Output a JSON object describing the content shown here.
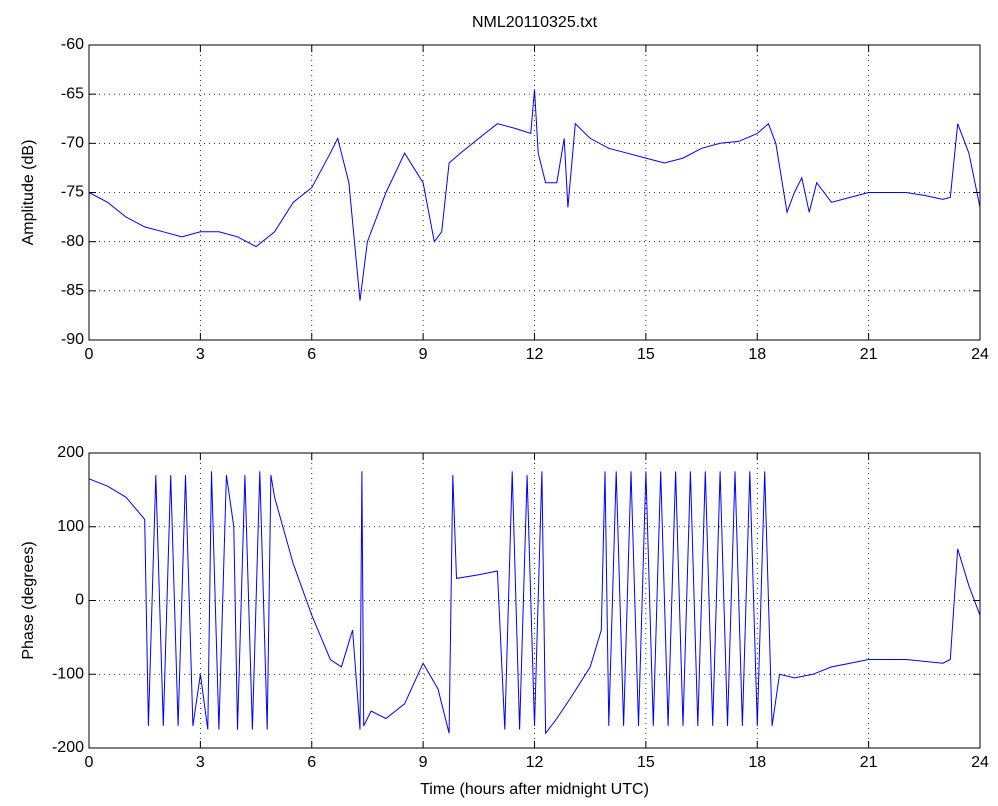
{
  "chart_data": [
    {
      "type": "line",
      "title": "NML20110325.txt",
      "ylabel": "Amplitude (dB)",
      "color": "#0000ff",
      "grid": true,
      "xlim": [
        0,
        24
      ],
      "xticks": [
        0,
        3,
        6,
        9,
        12,
        15,
        18,
        21,
        24
      ],
      "ylim": [
        -90,
        -60
      ],
      "yticks": [
        -90,
        -85,
        -80,
        -75,
        -70,
        -65,
        -60
      ],
      "x": [
        0,
        0.5,
        1,
        1.5,
        2,
        2.5,
        3,
        3.5,
        4,
        4.5,
        5,
        5.5,
        6,
        6.5,
        6.7,
        7,
        7.3,
        7.5,
        8,
        8.5,
        9,
        9.3,
        9.5,
        9.7,
        10,
        10.5,
        11,
        11.5,
        11.9,
        12,
        12.1,
        12.3,
        12.6,
        12.8,
        12.9,
        13.1,
        13.5,
        14,
        14.5,
        15,
        15.5,
        16,
        16.5,
        17,
        17.5,
        18,
        18.3,
        18.5,
        18.8,
        19,
        19.2,
        19.4,
        19.6,
        20,
        20.5,
        21,
        21.5,
        22,
        22.5,
        23,
        23.2,
        23.4,
        23.7,
        24
      ],
      "values": [
        -75,
        -76,
        -77.5,
        -78.5,
        -79,
        -79.5,
        -79,
        -79,
        -79.5,
        -80.5,
        -79,
        -76,
        -74.5,
        -71,
        -69.5,
        -74,
        -86,
        -80,
        -75,
        -71,
        -74,
        -80,
        -79,
        -72,
        -71,
        -69.5,
        -68,
        -68.5,
        -69,
        -64.5,
        -71,
        -74,
        -74,
        -69.5,
        -76.5,
        -68,
        -69.5,
        -70.5,
        -71,
        -71.5,
        -72,
        -71.5,
        -70.5,
        -70,
        -69.8,
        -69,
        -68,
        -70,
        -77,
        -75,
        -73.5,
        -77,
        -74,
        -76,
        -75.5,
        -75,
        -75,
        -75,
        -75.3,
        -75.7,
        -75.5,
        -68,
        -71,
        -76.5
      ]
    },
    {
      "type": "line",
      "ylabel": "Phase (degrees)",
      "xlabel": "Time (hours after midnight UTC)",
      "color": "#0000ff",
      "grid": true,
      "xlim": [
        0,
        24
      ],
      "xticks": [
        0,
        3,
        6,
        9,
        12,
        15,
        18,
        21,
        24
      ],
      "ylim": [
        -200,
        200
      ],
      "yticks": [
        -200,
        -100,
        0,
        100,
        200
      ],
      "x": [
        0,
        0.5,
        1,
        1.5,
        1.6,
        1.8,
        2,
        2.2,
        2.4,
        2.6,
        2.8,
        3,
        3.2,
        3.3,
        3.5,
        3.7,
        3.9,
        4,
        4.2,
        4.4,
        4.6,
        4.8,
        4.9,
        5,
        5.5,
        6,
        6.5,
        6.8,
        7.1,
        7.3,
        7.35,
        7.4,
        7.6,
        8,
        8.5,
        9,
        9.4,
        9.7,
        9.8,
        9.9,
        10.5,
        11,
        11.2,
        11.4,
        11.6,
        11.8,
        12,
        12.2,
        12.3,
        12.6,
        13,
        13.5,
        13.8,
        13.9,
        14,
        14.2,
        14.4,
        14.6,
        14.8,
        15,
        15.2,
        15.4,
        15.6,
        15.8,
        16,
        16.2,
        16.4,
        16.6,
        16.8,
        17,
        17.2,
        17.4,
        17.6,
        17.8,
        18,
        18.2,
        18.4,
        18.6,
        19,
        19.5,
        20,
        20.5,
        21,
        22,
        23,
        23.2,
        23.4,
        23.7,
        24
      ],
      "values": [
        165,
        155,
        140,
        110,
        -170,
        170,
        -170,
        170,
        -170,
        170,
        -170,
        -100,
        -175,
        175,
        -175,
        170,
        100,
        -175,
        170,
        -175,
        175,
        -175,
        170,
        140,
        50,
        -20,
        -80,
        -90,
        -40,
        -175,
        175,
        -170,
        -150,
        -160,
        -140,
        -85,
        -120,
        -180,
        170,
        30,
        35,
        40,
        -175,
        175,
        -175,
        170,
        -170,
        175,
        -180,
        -160,
        -130,
        -90,
        -40,
        175,
        -170,
        175,
        -170,
        175,
        -170,
        175,
        -170,
        175,
        -170,
        175,
        -170,
        175,
        -170,
        175,
        -170,
        175,
        -170,
        175,
        -170,
        175,
        -170,
        175,
        -170,
        -100,
        -105,
        -100,
        -90,
        -85,
        -80,
        -80,
        -85,
        -80,
        70,
        20,
        -20
      ]
    }
  ]
}
